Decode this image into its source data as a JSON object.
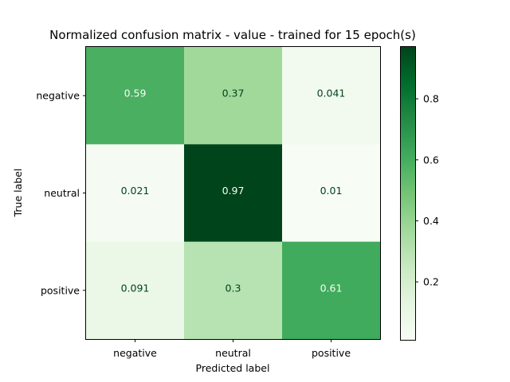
{
  "chart_data": {
    "type": "heatmap",
    "title": "Normalized confusion matrix - value - trained for 15 epoch(s)",
    "xlabel": "Predicted label",
    "ylabel": "True label",
    "x_categories": [
      "negative",
      "neutral",
      "positive"
    ],
    "y_categories": [
      "negative",
      "neutral",
      "positive"
    ],
    "values": [
      [
        0.59,
        0.37,
        0.041
      ],
      [
        0.021,
        0.97,
        0.01
      ],
      [
        0.091,
        0.3,
        0.61
      ]
    ],
    "cell_labels": [
      [
        "0.59",
        "0.37",
        "0.041"
      ],
      [
        "0.021",
        "0.97",
        "0.01"
      ],
      [
        "0.091",
        "0.3",
        "0.61"
      ]
    ],
    "colormap": "Greens",
    "colorbar": {
      "range": [
        0.01,
        0.97
      ],
      "ticks": [
        0.2,
        0.4,
        0.6,
        0.8
      ],
      "tick_labels": [
        "0.2",
        "0.4",
        "0.6",
        "0.8"
      ]
    },
    "grid": false,
    "colors": {
      "low": "#f7fcf5",
      "high": "#00441b",
      "text_light": "#f7fcf5",
      "text_dark": "#00441b"
    }
  }
}
